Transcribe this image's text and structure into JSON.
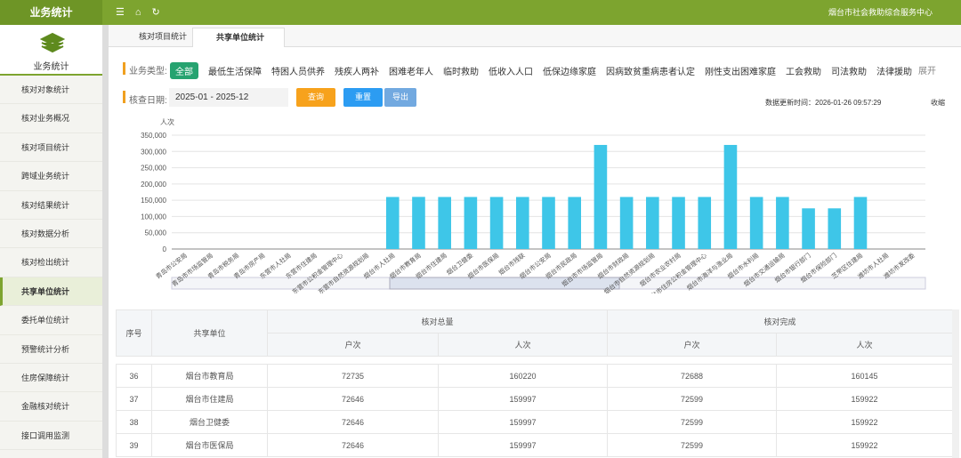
{
  "topbar": {
    "title": "业务统计",
    "user": "烟台市社会救助综合服务中心"
  },
  "sidebar": {
    "header": "业务统计",
    "items": [
      "核对对象统计",
      "核对业务概况",
      "核对项目统计",
      "跨域业务统计",
      "核对结果统计",
      "核对数据分析",
      "核对检出统计",
      "共享单位统计",
      "委托单位统计",
      "预警统计分析",
      "住房保障统计",
      "金融核对统计",
      "接口调用监测"
    ]
  },
  "tabs": [
    "核对项目统计",
    "共享单位统计"
  ],
  "filters": {
    "type_label": "业务类型:",
    "types": [
      "全部",
      "最低生活保障",
      "特困人员供养",
      "残疾人两补",
      "困难老年人",
      "临时救助",
      "低收入人口",
      "低保边缘家庭",
      "因病致贫重病患者认定",
      "刚性支出困难家庭",
      "工会救助",
      "司法救助",
      "法律援助"
    ],
    "expand": "展开",
    "date_label": "核查日期:",
    "date_range": "2025-01 - 2025-12",
    "buttons": [
      "查询",
      "重置",
      "导出"
    ],
    "updated": "数据更新时间：2026-01-26 09:57:29",
    "collapse": "收缩"
  },
  "chart_data": {
    "type": "bar",
    "y_label": "人次",
    "color": "#3ec6e8",
    "categories": [
      "青岛市公安局",
      "青岛市市场监管局",
      "青岛市税务局",
      "青岛市房产局",
      "东营市人社局",
      "东营市住建局",
      "东营市公积金管理中心",
      "东营市自然资源规划局",
      "烟台市人社局",
      "烟台市教育局",
      "烟台市住建局",
      "烟台卫健委",
      "烟台市医保局",
      "烟台市残联",
      "烟台市公安局",
      "烟台市民政局",
      "烟台市市场监管局",
      "烟台市财政局",
      "烟台市自然资源规划局",
      "烟台市农业农村局",
      "烟台市住房公积金管理中心",
      "烟台市海洋与渔业局",
      "烟台市水利局",
      "烟台市交通运输局",
      "烟台市银行部门",
      "烟台市保险部门",
      "芝罘区住建局",
      "潍坊市人社局",
      "潍坊市发改委"
    ],
    "values": [
      0,
      0,
      0,
      0,
      0,
      0,
      0,
      0,
      160000,
      160220,
      159997,
      159997,
      159997,
      160000,
      160000,
      160000,
      320000,
      160000,
      160000,
      160000,
      160000,
      320000,
      160000,
      160000,
      125000,
      125000,
      160000,
      0,
      0
    ],
    "ylim": [
      0,
      350000
    ],
    "yticks": [
      0,
      {
        "value": 50000,
        "label": "50,000"
      },
      {
        "value": 100000,
        "label": "100,000"
      },
      {
        "value": 150000,
        "label": "150,000"
      },
      {
        "value": 200000,
        "label": "200,000"
      },
      {
        "value": 250000,
        "label": "250,000"
      },
      {
        "value": 300000,
        "label": "300,000"
      },
      {
        "value": 350000,
        "label": "350,000"
      }
    ],
    "grid": true
  },
  "table": {
    "headers": [
      "序号",
      "共享单位"
    ],
    "groups": [
      "核对总量",
      "核对完成"
    ],
    "subheaders": [
      "户次",
      "人次",
      "户次",
      "人次"
    ],
    "rows": [
      [
        36,
        "烟台市教育局",
        72735,
        160220,
        72688,
        160145
      ],
      [
        37,
        "烟台市住建局",
        72646,
        159997,
        72599,
        159922
      ],
      [
        38,
        "烟台卫健委",
        72646,
        159997,
        72599,
        159922
      ],
      [
        39,
        "烟台市医保局",
        72646,
        159997,
        72599,
        159922
      ]
    ]
  }
}
